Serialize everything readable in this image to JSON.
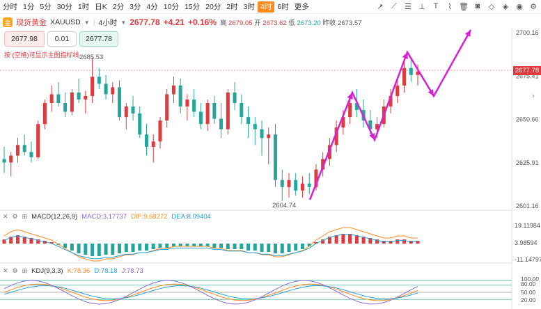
{
  "timeframes": [
    "分时",
    "1分",
    "5分",
    "30分",
    "1时",
    "日K",
    "2分",
    "3分",
    "4分",
    "10分",
    "15分",
    "20分",
    "2时",
    "3时",
    "4时",
    "6时",
    "更多"
  ],
  "active_timeframe": "4时",
  "tool_icons": [
    "pen-icon",
    "line-icon",
    "horizontal-lines-icon",
    "measure-icon",
    "text-icon",
    "brush-icon",
    "trash-icon",
    "camera-icon",
    "eraser-icon",
    "layers-icon",
    "eye-icon",
    "settings-icon"
  ],
  "symbol": {
    "name": "现货黄金",
    "code": "XAUUSD",
    "interval": "4小时",
    "price": "2677.78",
    "change": "+4.21",
    "change_pct": "+0.16%",
    "high_label": "高",
    "high": "2679.05",
    "open_label": "开",
    "open": "2673.62",
    "low_label": "低",
    "low": "2673.20",
    "prev_label": "昨收",
    "prev": "2673.57"
  },
  "trade": {
    "sell": "2677.98",
    "qty": "0.01",
    "buy": "2677.78"
  },
  "hint": "按 (空格)可显示主图指标线",
  "price_axis": [
    "2700.16",
    "2675.41",
    "2650.66",
    "2625.91",
    "2601.16"
  ],
  "current_price_tag": "2677.78",
  "high_mark": "2685.53",
  "low_mark": "2604.74",
  "macd": {
    "label": "MACD(12,26,9)",
    "macd": "MACD:3.17737",
    "dif": "DIF:9.68272",
    "dea": "DEA:8.09404",
    "axis": [
      "19.11984",
      "3.98594",
      "-11.14797"
    ]
  },
  "kdj": {
    "label": "KDJ(9,3,3)",
    "k": "K:78.36",
    "d": "D:78.18",
    "j": "J:78.73",
    "axis": [
      "100.00",
      "80.00",
      "50.00",
      "20.00"
    ]
  },
  "colors": {
    "up": "#e0393e",
    "down": "#26a69a",
    "arrow": "#d61fd6",
    "accent": "#ff8a1f"
  },
  "candles": [
    {
      "o": 2628,
      "h": 2635,
      "l": 2620,
      "c": 2626
    },
    {
      "o": 2626,
      "h": 2632,
      "l": 2618,
      "c": 2630
    },
    {
      "o": 2630,
      "h": 2640,
      "l": 2626,
      "c": 2636
    },
    {
      "o": 2636,
      "h": 2642,
      "l": 2630,
      "c": 2632
    },
    {
      "o": 2632,
      "h": 2638,
      "l": 2626,
      "c": 2629
    },
    {
      "o": 2629,
      "h": 2650,
      "l": 2628,
      "c": 2648
    },
    {
      "o": 2648,
      "h": 2662,
      "l": 2645,
      "c": 2660
    },
    {
      "o": 2660,
      "h": 2670,
      "l": 2655,
      "c": 2665
    },
    {
      "o": 2665,
      "h": 2672,
      "l": 2658,
      "c": 2660
    },
    {
      "o": 2660,
      "h": 2666,
      "l": 2652,
      "c": 2655
    },
    {
      "o": 2655,
      "h": 2668,
      "l": 2653,
      "c": 2666
    },
    {
      "o": 2666,
      "h": 2674,
      "l": 2660,
      "c": 2662
    },
    {
      "o": 2662,
      "h": 2667,
      "l": 2654,
      "c": 2664
    },
    {
      "o": 2664,
      "h": 2686,
      "l": 2660,
      "c": 2675
    },
    {
      "o": 2675,
      "h": 2680,
      "l": 2668,
      "c": 2671
    },
    {
      "o": 2671,
      "h": 2676,
      "l": 2662,
      "c": 2665
    },
    {
      "o": 2665,
      "h": 2672,
      "l": 2660,
      "c": 2669
    },
    {
      "o": 2669,
      "h": 2673,
      "l": 2650,
      "c": 2652
    },
    {
      "o": 2652,
      "h": 2660,
      "l": 2645,
      "c": 2658
    },
    {
      "o": 2658,
      "h": 2664,
      "l": 2650,
      "c": 2654
    },
    {
      "o": 2654,
      "h": 2658,
      "l": 2640,
      "c": 2642
    },
    {
      "o": 2642,
      "h": 2648,
      "l": 2630,
      "c": 2635
    },
    {
      "o": 2635,
      "h": 2642,
      "l": 2626,
      "c": 2638
    },
    {
      "o": 2638,
      "h": 2652,
      "l": 2634,
      "c": 2650
    },
    {
      "o": 2650,
      "h": 2668,
      "l": 2646,
      "c": 2665
    },
    {
      "o": 2665,
      "h": 2675,
      "l": 2660,
      "c": 2670
    },
    {
      "o": 2670,
      "h": 2674,
      "l": 2654,
      "c": 2658
    },
    {
      "o": 2658,
      "h": 2665,
      "l": 2650,
      "c": 2662
    },
    {
      "o": 2662,
      "h": 2668,
      "l": 2652,
      "c": 2655
    },
    {
      "o": 2655,
      "h": 2660,
      "l": 2645,
      "c": 2648
    },
    {
      "o": 2648,
      "h": 2662,
      "l": 2644,
      "c": 2660
    },
    {
      "o": 2660,
      "h": 2664,
      "l": 2648,
      "c": 2651
    },
    {
      "o": 2651,
      "h": 2660,
      "l": 2640,
      "c": 2645
    },
    {
      "o": 2645,
      "h": 2668,
      "l": 2642,
      "c": 2666
    },
    {
      "o": 2666,
      "h": 2672,
      "l": 2656,
      "c": 2660
    },
    {
      "o": 2660,
      "h": 2665,
      "l": 2648,
      "c": 2652
    },
    {
      "o": 2652,
      "h": 2658,
      "l": 2640,
      "c": 2648
    },
    {
      "o": 2648,
      "h": 2652,
      "l": 2636,
      "c": 2645
    },
    {
      "o": 2645,
      "h": 2650,
      "l": 2630,
      "c": 2640
    },
    {
      "o": 2640,
      "h": 2646,
      "l": 2625,
      "c": 2642
    },
    {
      "o": 2642,
      "h": 2648,
      "l": 2612,
      "c": 2616
    },
    {
      "o": 2616,
      "h": 2622,
      "l": 2604,
      "c": 2612
    },
    {
      "o": 2612,
      "h": 2620,
      "l": 2606,
      "c": 2616
    },
    {
      "o": 2616,
      "h": 2620,
      "l": 2607,
      "c": 2610
    },
    {
      "o": 2610,
      "h": 2618,
      "l": 2606,
      "c": 2614
    },
    {
      "o": 2614,
      "h": 2620,
      "l": 2608,
      "c": 2612
    },
    {
      "o": 2612,
      "h": 2625,
      "l": 2610,
      "c": 2622
    },
    {
      "o": 2622,
      "h": 2632,
      "l": 2618,
      "c": 2628
    },
    {
      "o": 2628,
      "h": 2640,
      "l": 2624,
      "c": 2636
    },
    {
      "o": 2636,
      "h": 2650,
      "l": 2632,
      "c": 2646
    },
    {
      "o": 2646,
      "h": 2656,
      "l": 2642,
      "c": 2652
    },
    {
      "o": 2652,
      "h": 2664,
      "l": 2648,
      "c": 2660
    },
    {
      "o": 2660,
      "h": 2668,
      "l": 2652,
      "c": 2656
    },
    {
      "o": 2656,
      "h": 2662,
      "l": 2646,
      "c": 2650
    },
    {
      "o": 2650,
      "h": 2656,
      "l": 2642,
      "c": 2645
    },
    {
      "o": 2645,
      "h": 2652,
      "l": 2640,
      "c": 2648
    },
    {
      "o": 2648,
      "h": 2662,
      "l": 2646,
      "c": 2658
    },
    {
      "o": 2658,
      "h": 2668,
      "l": 2654,
      "c": 2664
    },
    {
      "o": 2664,
      "h": 2674,
      "l": 2660,
      "c": 2670
    },
    {
      "o": 2670,
      "h": 2684,
      "l": 2666,
      "c": 2680
    },
    {
      "o": 2680,
      "h": 2686,
      "l": 2672,
      "c": 2676
    },
    {
      "o": 2676,
      "h": 2682,
      "l": 2670,
      "c": 2678
    }
  ],
  "macd_hist": [
    3,
    5,
    6,
    5,
    4,
    3,
    2,
    1,
    -1,
    -3,
    -5,
    -7,
    -8,
    -9,
    -9,
    -8,
    -8,
    -7,
    -6,
    -6,
    -5,
    -5,
    -4,
    -3,
    -3,
    -2,
    -2,
    -2,
    -2,
    -2,
    -2,
    -3,
    -3,
    -4,
    -4,
    -4,
    -5,
    -5,
    -6,
    -6,
    -7,
    -7,
    -6,
    -5,
    -4,
    -2,
    1,
    3,
    5,
    6,
    7,
    7,
    6,
    5,
    4,
    3,
    2,
    2,
    3,
    3,
    2,
    2
  ]
}
